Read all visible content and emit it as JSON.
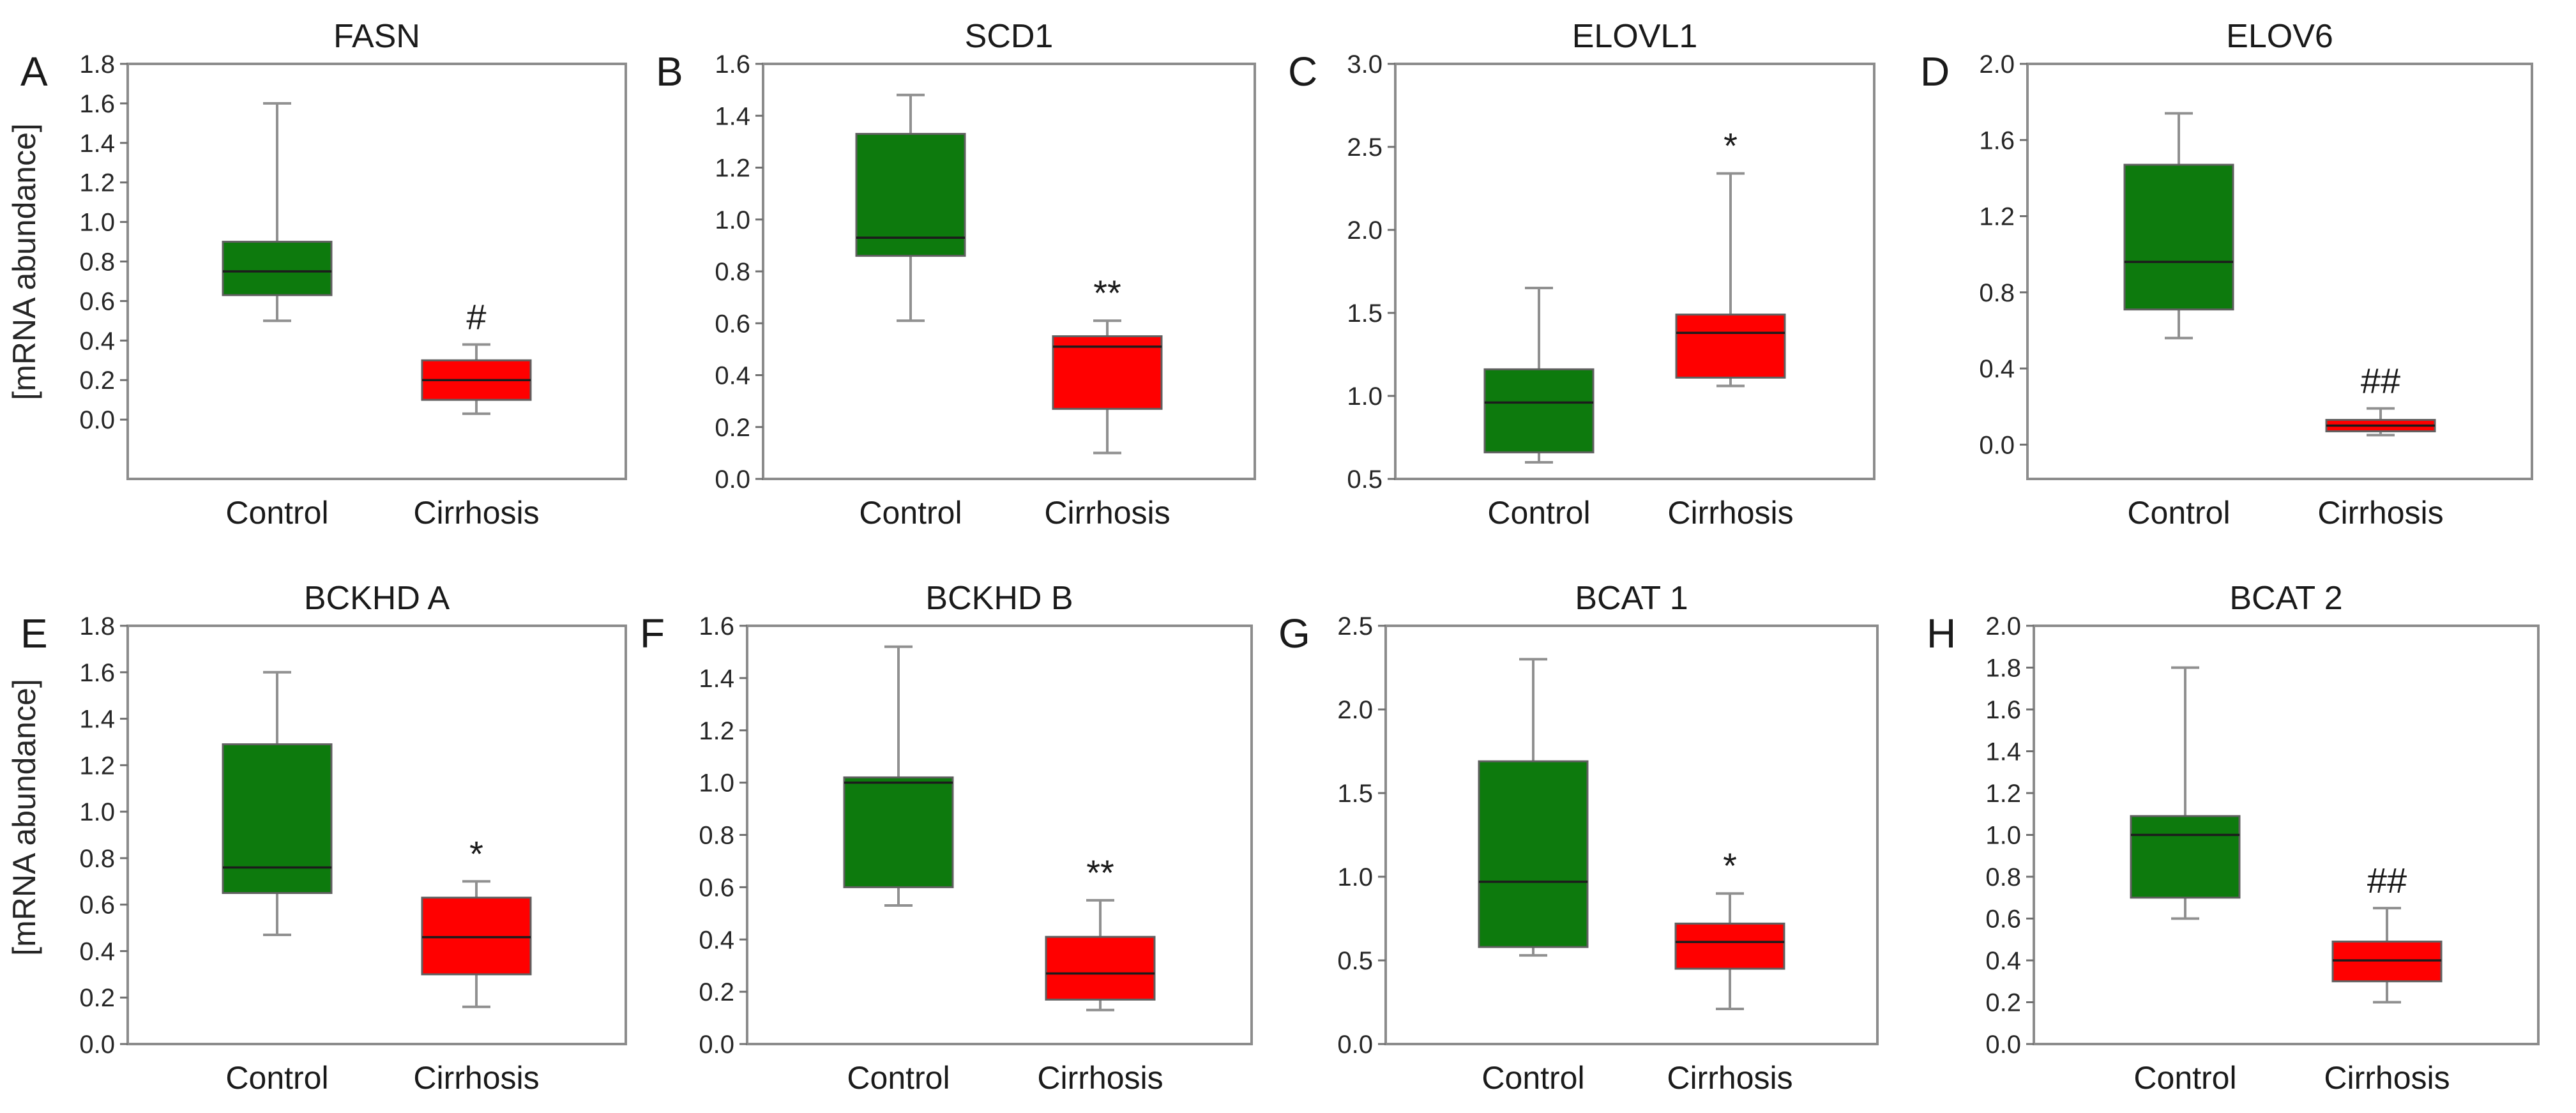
{
  "figure": {
    "ylabel": "[mRNA abundance]"
  },
  "colors": {
    "control": "#0d7a0d",
    "cirrhosis": "#ff0000"
  },
  "chart_data": [
    {
      "panel": "A",
      "title": "FASN",
      "type": "box",
      "categories": [
        "Control",
        "Cirrhosis"
      ],
      "yticks": [
        "0.0",
        "0.2",
        "0.4",
        "0.6",
        "0.8",
        "1.0",
        "1.2",
        "1.4",
        "1.6",
        "1.8"
      ],
      "ylim": [
        -0.3,
        1.8
      ],
      "boxes": [
        {
          "name": "Control",
          "min": 0.5,
          "q1": 0.63,
          "median": 0.75,
          "q3": 0.9,
          "max": 1.6
        },
        {
          "name": "Cirrhosis",
          "min": 0.03,
          "q1": 0.1,
          "median": 0.2,
          "q3": 0.3,
          "max": 0.38
        }
      ],
      "annotations": [
        {
          "category": "Cirrhosis",
          "text": "#"
        }
      ]
    },
    {
      "panel": "B",
      "title": "SCD1",
      "type": "box",
      "categories": [
        "Control",
        "Cirrhosis"
      ],
      "yticks": [
        "0.0",
        "0.2",
        "0.4",
        "0.6",
        "0.8",
        "1.0",
        "1.2",
        "1.4",
        "1.6"
      ],
      "ylim": [
        0.0,
        1.6
      ],
      "boxes": [
        {
          "name": "Control",
          "min": 0.61,
          "q1": 0.86,
          "median": 0.93,
          "q3": 1.33,
          "max": 1.48
        },
        {
          "name": "Cirrhosis",
          "min": 0.1,
          "q1": 0.27,
          "median": 0.51,
          "q3": 0.55,
          "max": 0.61
        }
      ],
      "annotations": [
        {
          "category": "Cirrhosis",
          "text": "**"
        }
      ]
    },
    {
      "panel": "C",
      "title": "ELOVL1",
      "type": "box",
      "categories": [
        "Control",
        "Cirrhosis"
      ],
      "yticks": [
        "0.5",
        "1.0",
        "1.5",
        "2.0",
        "2.5",
        "3.0"
      ],
      "ylim": [
        0.5,
        3.0
      ],
      "boxes": [
        {
          "name": "Control",
          "min": 0.6,
          "q1": 0.66,
          "median": 0.96,
          "q3": 1.16,
          "max": 1.65
        },
        {
          "name": "Cirrhosis",
          "min": 1.06,
          "q1": 1.11,
          "median": 1.38,
          "q3": 1.49,
          "max": 2.34
        }
      ],
      "annotations": [
        {
          "category": "Cirrhosis",
          "text": "*"
        }
      ]
    },
    {
      "panel": "D",
      "title": "ELOV6",
      "type": "box",
      "categories": [
        "Control",
        "Cirrhosis"
      ],
      "yticks": [
        "0.0",
        "0.4",
        "0.8",
        "1.2",
        "1.6",
        "2.0"
      ],
      "ylim": [
        -0.18,
        2.0
      ],
      "boxes": [
        {
          "name": "Control",
          "min": 0.56,
          "q1": 0.71,
          "median": 0.96,
          "q3": 1.47,
          "max": 1.74
        },
        {
          "name": "Cirrhosis",
          "min": 0.05,
          "q1": 0.07,
          "median": 0.1,
          "q3": 0.13,
          "max": 0.19
        }
      ],
      "annotations": [
        {
          "category": "Cirrhosis",
          "text": "##"
        }
      ]
    },
    {
      "panel": "E",
      "title": "BCKHD A",
      "type": "box",
      "categories": [
        "Control",
        "Cirrhosis"
      ],
      "yticks": [
        "0.0",
        "0.2",
        "0.4",
        "0.6",
        "0.8",
        "1.0",
        "1.2",
        "1.4",
        "1.6",
        "1.8"
      ],
      "ylim": [
        0.0,
        1.8
      ],
      "boxes": [
        {
          "name": "Control",
          "min": 0.47,
          "q1": 0.65,
          "median": 0.76,
          "q3": 1.29,
          "max": 1.6
        },
        {
          "name": "Cirrhosis",
          "min": 0.16,
          "q1": 0.3,
          "median": 0.46,
          "q3": 0.63,
          "max": 0.7
        }
      ],
      "annotations": [
        {
          "category": "Cirrhosis",
          "text": "*"
        }
      ]
    },
    {
      "panel": "F",
      "title": "BCKHD B",
      "type": "box",
      "categories": [
        "Control",
        "Cirrhosis"
      ],
      "yticks": [
        "0.0",
        "0.2",
        "0.4",
        "0.6",
        "0.8",
        "1.0",
        "1.2",
        "1.4",
        "1.6"
      ],
      "ylim": [
        0.0,
        1.6
      ],
      "boxes": [
        {
          "name": "Control",
          "min": 0.53,
          "q1": 0.6,
          "median": 1.0,
          "q3": 1.02,
          "max": 1.52
        },
        {
          "name": "Cirrhosis",
          "min": 0.13,
          "q1": 0.17,
          "median": 0.27,
          "q3": 0.41,
          "max": 0.55
        }
      ],
      "annotations": [
        {
          "category": "Cirrhosis",
          "text": "**"
        }
      ]
    },
    {
      "panel": "G",
      "title": "BCAT 1",
      "type": "box",
      "categories": [
        "Control",
        "Cirrhosis"
      ],
      "yticks": [
        "0.0",
        "0.5",
        "1.0",
        "1.5",
        "2.0",
        "2.5"
      ],
      "ylim": [
        0.0,
        2.5
      ],
      "boxes": [
        {
          "name": "Control",
          "min": 0.53,
          "q1": 0.58,
          "median": 0.97,
          "q3": 1.69,
          "max": 2.3
        },
        {
          "name": "Cirrhosis",
          "min": 0.21,
          "q1": 0.45,
          "median": 0.61,
          "q3": 0.72,
          "max": 0.9
        }
      ],
      "annotations": [
        {
          "category": "Cirrhosis",
          "text": "*"
        }
      ]
    },
    {
      "panel": "H",
      "title": "BCAT 2",
      "type": "box",
      "categories": [
        "Control",
        "Cirrhosis"
      ],
      "yticks": [
        "0.0",
        "0.2",
        "0.4",
        "0.6",
        "0.8",
        "1.0",
        "1.2",
        "1.4",
        "1.6",
        "1.8",
        "2.0"
      ],
      "ylim": [
        0.0,
        2.0
      ],
      "boxes": [
        {
          "name": "Control",
          "min": 0.6,
          "q1": 0.7,
          "median": 1.0,
          "q3": 1.09,
          "max": 1.8
        },
        {
          "name": "Cirrhosis",
          "min": 0.2,
          "q1": 0.3,
          "median": 0.4,
          "q3": 0.49,
          "max": 0.65
        }
      ],
      "annotations": [
        {
          "category": "Cirrhosis",
          "text": "##"
        }
      ]
    }
  ]
}
